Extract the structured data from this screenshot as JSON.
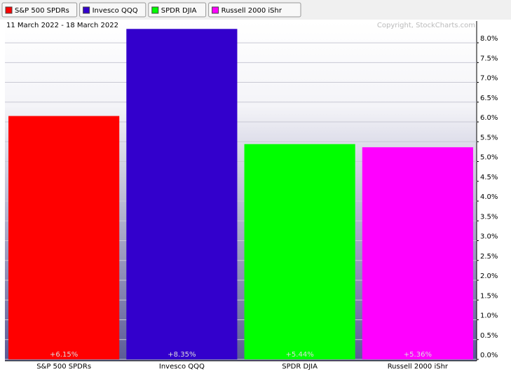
{
  "chart_data": {
    "type": "bar",
    "subtitle": "11 March 2022 - 18 March 2022",
    "copyright": "Copyright, StockCharts.com",
    "categories": [
      "S&P 500 SPDRs",
      "Invesco QQQ",
      "SPDR DJIA",
      "Russell 2000 iShr"
    ],
    "values": [
      6.15,
      8.35,
      5.44,
      5.36
    ],
    "value_labels": [
      "+6.15%",
      "+8.35%",
      "+5.44%",
      "+5.36%"
    ],
    "colors": [
      "#ff0000",
      "#3300cc",
      "#00ff00",
      "#ff00ff"
    ],
    "ylim": [
      0,
      8.55
    ],
    "yticks": [
      {
        "value": 0,
        "label": "0.0%"
      },
      {
        "value": 0.5,
        "label": "0.5%"
      },
      {
        "value": 1,
        "label": "1.0%"
      },
      {
        "value": 1.5,
        "label": "1.5%"
      },
      {
        "value": 2,
        "label": "2.0%"
      },
      {
        "value": 2.5,
        "label": "2.5%"
      },
      {
        "value": 3,
        "label": "3.0%"
      },
      {
        "value": 3.5,
        "label": "3.5%"
      },
      {
        "value": 4,
        "label": "4.0%"
      },
      {
        "value": 4.5,
        "label": "4.5%"
      },
      {
        "value": 5,
        "label": "5.0%"
      },
      {
        "value": 5.5,
        "label": "5.5%"
      },
      {
        "value": 6,
        "label": "6.0%"
      },
      {
        "value": 6.5,
        "label": "6.5%"
      },
      {
        "value": 7,
        "label": "7.0%"
      },
      {
        "value": 7.5,
        "label": "7.5%"
      },
      {
        "value": 8,
        "label": "8.0%"
      }
    ],
    "grid": true,
    "legend": "top-left"
  }
}
